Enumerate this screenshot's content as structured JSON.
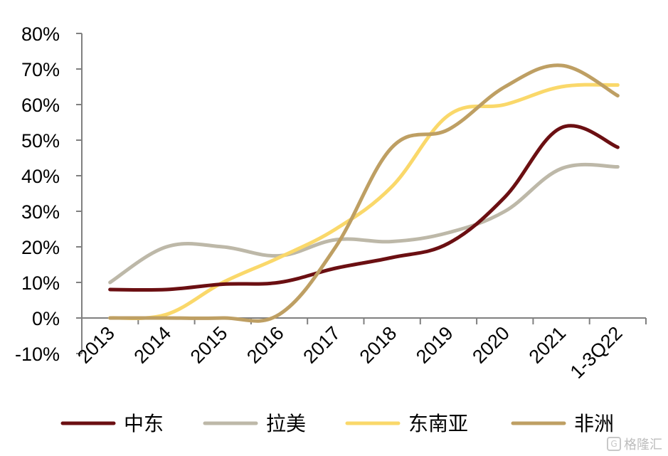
{
  "chart_data": {
    "type": "line",
    "categories": [
      "2013",
      "2014",
      "2015",
      "2016",
      "2017",
      "2018",
      "2019",
      "2020",
      "2021",
      "1-3Q22"
    ],
    "ylim": [
      -0.1,
      0.8
    ],
    "yticks": [
      -0.1,
      0,
      0.1,
      0.2,
      0.3,
      0.4,
      0.5,
      0.6,
      0.7,
      0.8
    ],
    "ytick_labels": [
      "-10%",
      "0%",
      "10%",
      "20%",
      "30%",
      "40%",
      "50%",
      "60%",
      "70%",
      "80%"
    ],
    "grid": false,
    "legend_position": "bottom",
    "series": [
      {
        "name": "中东",
        "color": "#6B0F12",
        "values": [
          0.08,
          0.08,
          0.095,
          0.1,
          0.14,
          0.17,
          0.21,
          0.34,
          0.535,
          0.48
        ]
      },
      {
        "name": "拉美",
        "color": "#BDB8A8",
        "values": [
          0.1,
          0.2,
          0.2,
          0.175,
          0.22,
          0.215,
          0.24,
          0.3,
          0.42,
          0.425
        ]
      },
      {
        "name": "东南亚",
        "color": "#FAD86A",
        "values": [
          0.0,
          0.01,
          0.1,
          0.17,
          0.25,
          0.37,
          0.57,
          0.6,
          0.65,
          0.655
        ]
      },
      {
        "name": "非洲",
        "color": "#BE9F63",
        "values": [
          0.0,
          0.0,
          0.0,
          0.01,
          0.2,
          0.48,
          0.53,
          0.65,
          0.71,
          0.625
        ]
      }
    ]
  },
  "watermark": {
    "text": "格隆汇",
    "icon": "logo-g-icon"
  }
}
